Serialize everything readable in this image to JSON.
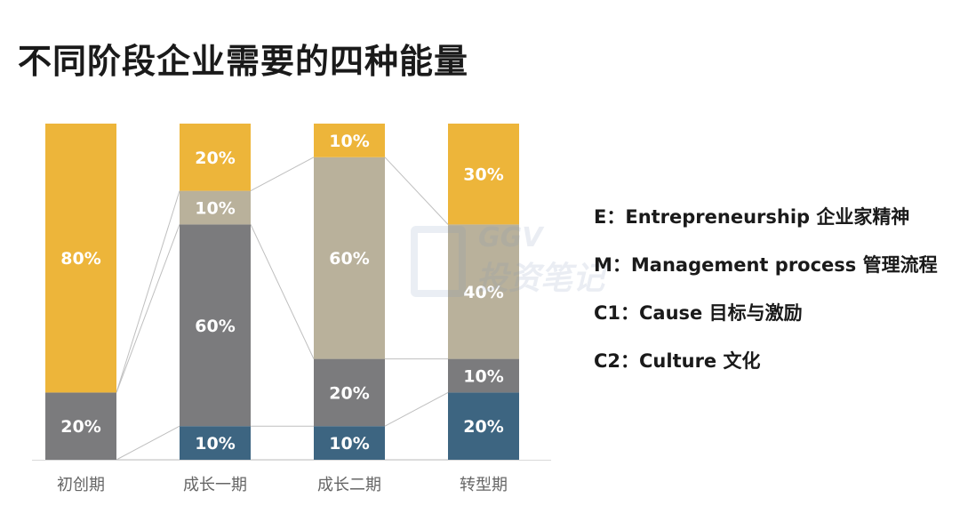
{
  "title": "不同阶段企业需要的四种能量",
  "colors": {
    "E": "#EDB53A",
    "M": "#B9B19B",
    "C1": "#7B7B7D",
    "C2": "#3D6581",
    "connector": "#BFBFBF",
    "axis": "#D9D9D9",
    "label": "#FFFFFF",
    "category_label": "#666666"
  },
  "legend": [
    "E：Entrepreneurship 企业家精神",
    "M：Management process 管理流程",
    "C1：Cause 目标与激励",
    "C2：Culture 文化"
  ],
  "watermark": {
    "brand": "GGV",
    "cn": "投资笔记"
  },
  "chart_data": {
    "type": "bar",
    "stacked": true,
    "normalized_100": true,
    "categories": [
      "初创期",
      "成长一期",
      "成长二期",
      "转型期"
    ],
    "stack_order_bottom_to_top": [
      "C2",
      "C1",
      "M",
      "E"
    ],
    "series": [
      {
        "key": "C2",
        "values": [
          0,
          10,
          10,
          20
        ]
      },
      {
        "key": "C1",
        "values": [
          20,
          60,
          20,
          10
        ]
      },
      {
        "key": "M",
        "values": [
          0,
          10,
          60,
          40
        ]
      },
      {
        "key": "E",
        "values": [
          80,
          20,
          10,
          30
        ]
      }
    ],
    "ylim": [
      0,
      100
    ],
    "unit": "%",
    "connector_lines": true,
    "legend_position": "right",
    "grid": false
  }
}
